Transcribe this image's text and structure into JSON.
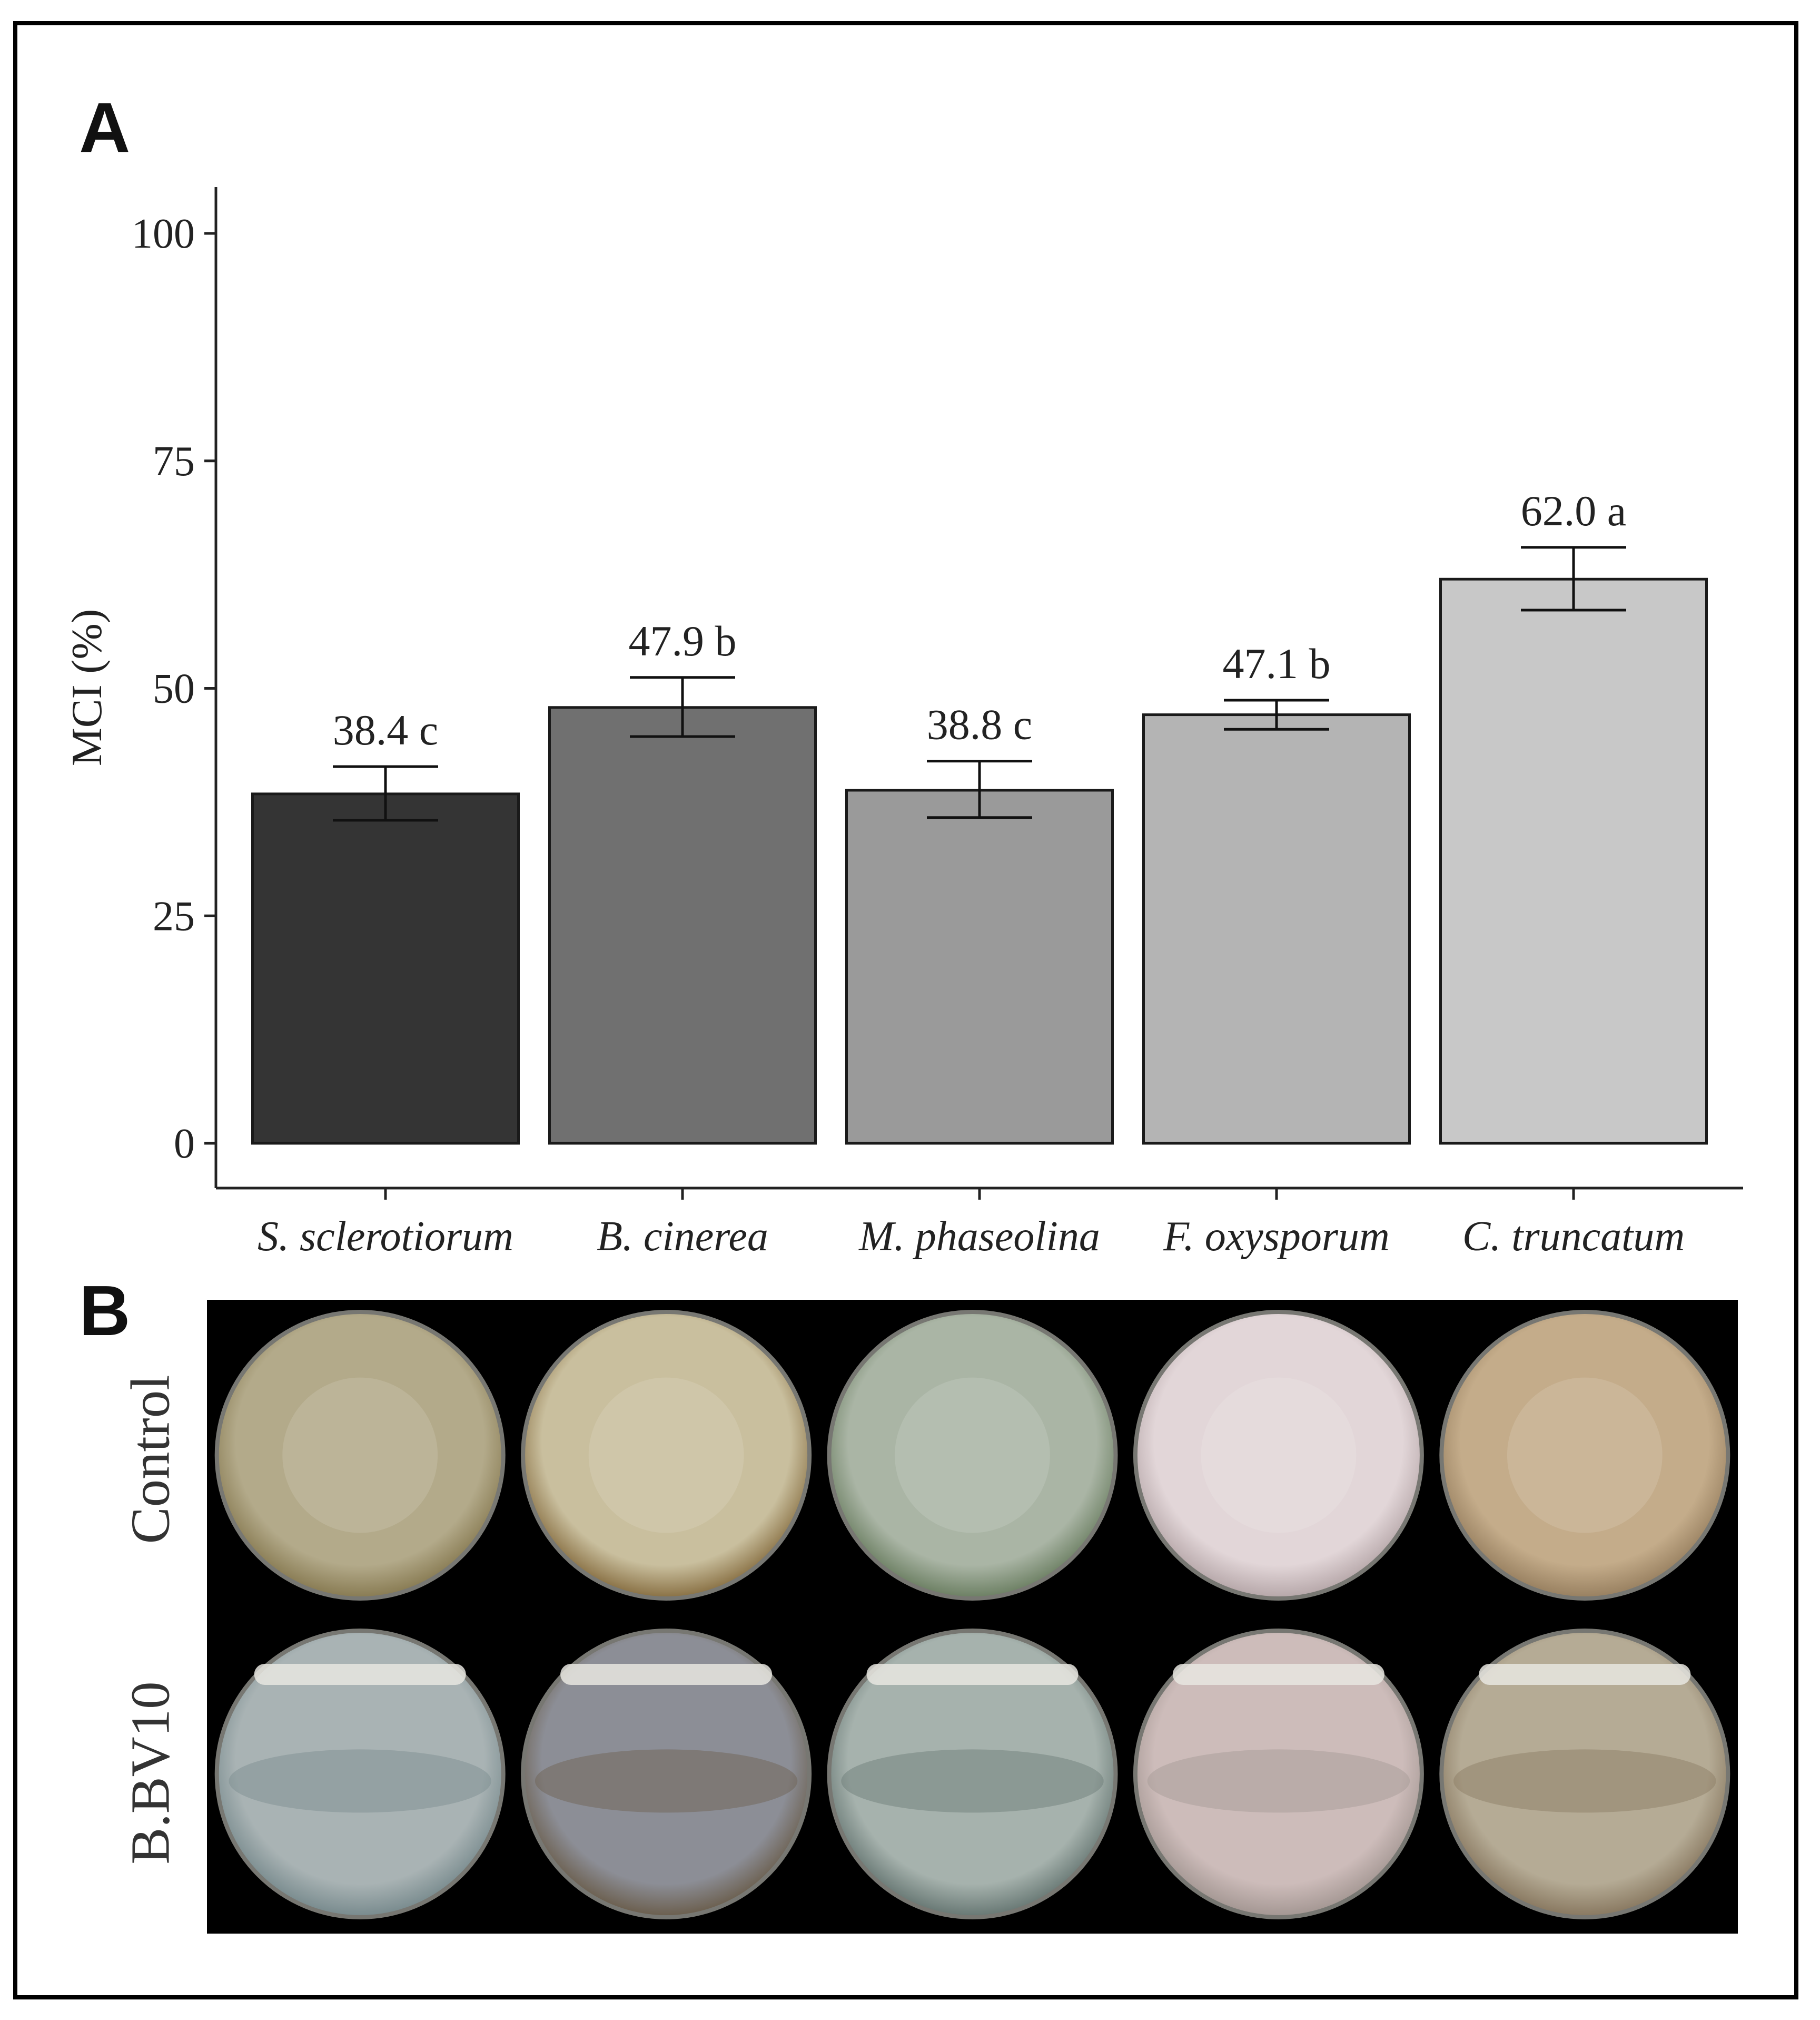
{
  "figure": {
    "panel_a_label": "A",
    "panel_b_label": "B"
  },
  "chart_data": {
    "type": "bar",
    "title": "",
    "xlabel": "",
    "ylabel": "MCI (%)",
    "ylim": [
      0,
      105
    ],
    "yticks": [
      0,
      25,
      50,
      75,
      100
    ],
    "categories": [
      "S. sclerotiorum",
      "B. cinerea",
      "M. phaseolina",
      "F. oxysporum",
      "C. truncatum"
    ],
    "values": [
      38.4,
      47.9,
      38.8,
      47.1,
      62.0
    ],
    "error_low": [
      35.5,
      44.7,
      35.8,
      45.5,
      58.6
    ],
    "error_high": [
      41.4,
      51.2,
      42.0,
      48.7,
      65.5
    ],
    "data_labels": [
      "38.4 c",
      "47.9 b",
      "38.8 c",
      "47.1 b",
      "62.0 a"
    ],
    "bar_colors": [
      "#343434",
      "#707070",
      "#9a9a9a",
      "#b4b4b4",
      "#c8c8c8"
    ],
    "grid": false,
    "legend": "none"
  },
  "plates": {
    "row_labels": [
      "Control",
      "B.BV10"
    ],
    "control": [
      {
        "bg": "#b3aa8a",
        "edge": "#8a7d55"
      },
      {
        "bg": "#c9bf9e",
        "edge": "#8c7448"
      },
      {
        "bg": "#aab5a5",
        "edge": "#6f8266"
      },
      {
        "bg": "#e2d6d8",
        "edge": "#b8a9ab"
      },
      {
        "bg": "#c4ac8a",
        "edge": "#9a8262"
      }
    ],
    "treated": [
      {
        "bg": "#a9b3b4",
        "edge": "#7a8c8f"
      },
      {
        "bg": "#8c8e96",
        "edge": "#6c6050"
      },
      {
        "bg": "#a6b2ad",
        "edge": "#6a7a76"
      },
      {
        "bg": "#cdbcba",
        "edge": "#a59894"
      },
      {
        "bg": "#b5ab95",
        "edge": "#8a7a62"
      }
    ]
  }
}
